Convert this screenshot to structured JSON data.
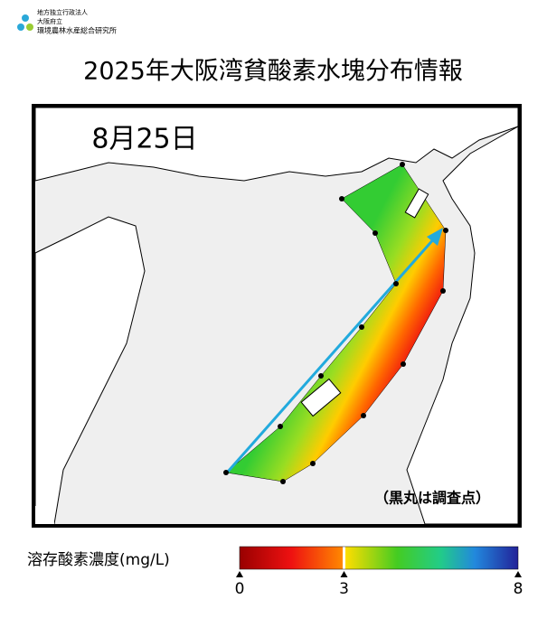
{
  "header": {
    "org_lines": [
      "地方独立行政法人",
      "大阪府立",
      "環境農林水産総合研究所"
    ],
    "title": "2025年大阪湾貧酸素水塊分布情報"
  },
  "map": {
    "date": "8月25日",
    "note": "（黒丸は調査点）"
  },
  "colorbar": {
    "label": "溶存酸素濃度(mg/L)",
    "ticks": [
      0,
      3,
      8
    ],
    "min": 0,
    "max": 8
  }
}
